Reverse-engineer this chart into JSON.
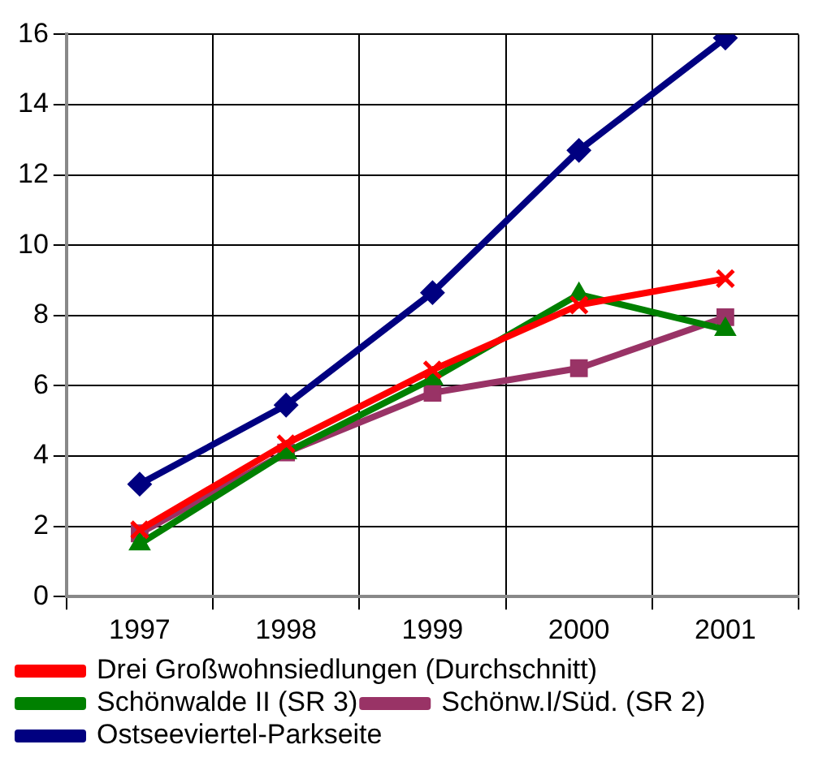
{
  "chart_data": {
    "type": "line",
    "categories": [
      "1997",
      "1998",
      "1999",
      "2000",
      "2001"
    ],
    "series": [
      {
        "name": "Ostseeviertel-Parkseite",
        "color": "#000080",
        "marker": "diamond",
        "values": [
          3.2,
          5.45,
          8.65,
          12.7,
          15.9
        ]
      },
      {
        "name": "Schönw.I/Süd. (SR 2)",
        "color": "#993366",
        "marker": "square",
        "values": [
          1.8,
          4.1,
          5.8,
          6.5,
          7.95
        ]
      },
      {
        "name": "Schönwalde II (SR 3)",
        "color": "#008000",
        "marker": "triangle",
        "values": [
          1.5,
          4.1,
          6.2,
          8.6,
          7.6
        ]
      },
      {
        "name": "Drei Großwohnsiedlungen (Durchschnitt)",
        "color": "#ff0000",
        "marker": "cross",
        "values": [
          1.9,
          4.35,
          6.45,
          8.3,
          9.05
        ]
      }
    ],
    "ylim": [
      0,
      16
    ],
    "yticks": [
      0,
      2,
      4,
      6,
      8,
      10,
      12,
      14,
      16
    ],
    "grid": true,
    "legend": "bottom"
  }
}
